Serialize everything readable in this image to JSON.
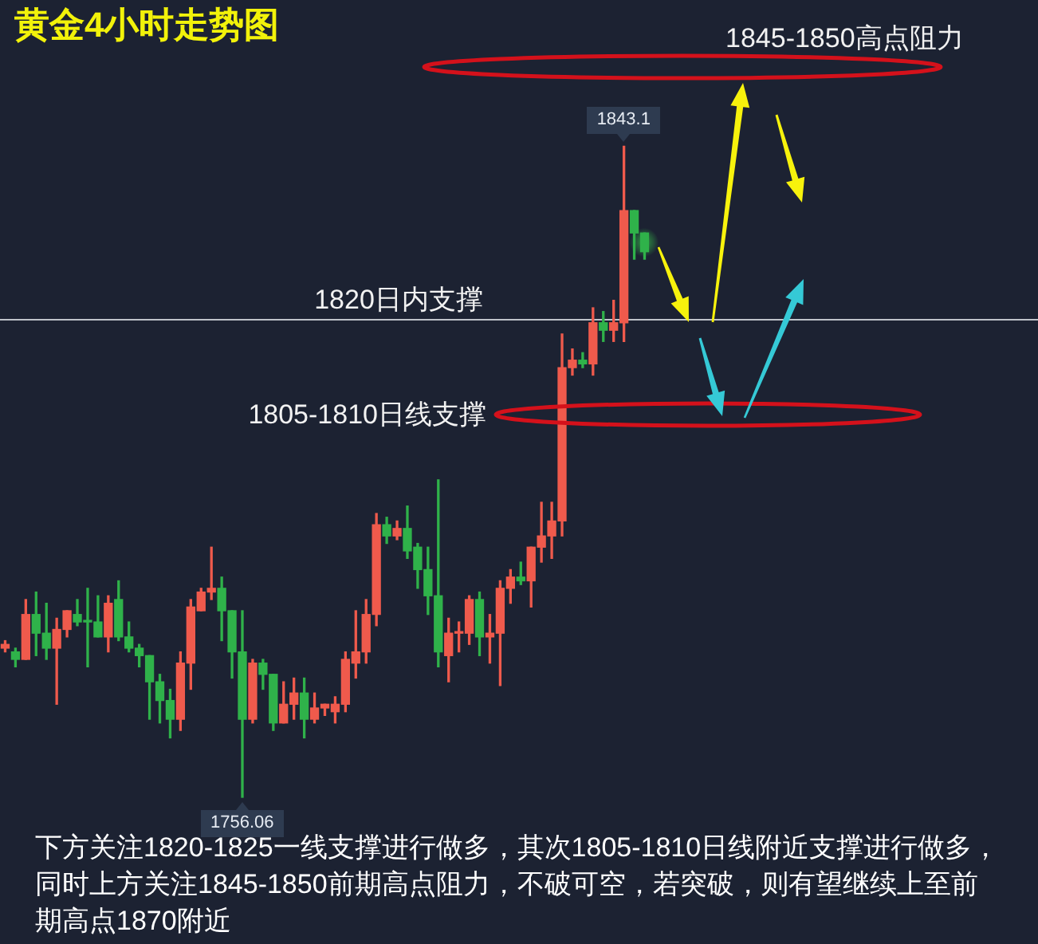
{
  "chart_data": {
    "type": "candlestick",
    "title": "黄金4小时走势图",
    "categories": [
      null,
      null,
      null,
      null,
      null,
      null,
      null,
      null,
      null,
      null,
      null,
      null,
      null,
      null,
      null,
      null,
      null,
      null,
      null,
      null,
      null,
      null,
      null,
      null,
      null,
      null,
      null,
      null,
      null,
      null,
      null,
      null,
      null,
      null,
      null,
      null,
      null,
      null,
      null,
      null,
      null,
      null,
      null,
      null,
      null,
      null,
      null,
      null,
      null,
      null,
      null,
      null,
      null,
      null,
      null,
      null,
      null,
      null,
      null,
      null,
      null,
      null,
      null
    ],
    "ohlc": [
      [
        1776,
        1777,
        1775.5,
        1776.5
      ],
      [
        1775.5,
        1776,
        1773.5,
        1774.5
      ],
      [
        1774.5,
        1782.5,
        1774.5,
        1780.5
      ],
      [
        1780.5,
        1783.5,
        1775,
        1778
      ],
      [
        1778,
        1782,
        1774.5,
        1776
      ],
      [
        1776,
        1780,
        1768.5,
        1778.5
      ],
      [
        1778.5,
        1781,
        1777.5,
        1781
      ],
      [
        1780.5,
        1782.5,
        1779,
        1779.5
      ],
      [
        1779.5,
        1784,
        1773.5,
        1779.5
      ],
      [
        1779.5,
        1783,
        1777.5,
        1777.5
      ],
      [
        1777.5,
        1783,
        1775.5,
        1782
      ],
      [
        1782.5,
        1785,
        1777,
        1777.5
      ],
      [
        1777.5,
        1779.5,
        1775.5,
        1776
      ],
      [
        1776,
        1776.5,
        1773.5,
        1775
      ],
      [
        1775,
        1775,
        1766.5,
        1771.5
      ],
      [
        1771.5,
        1772.5,
        1766,
        1769
      ],
      [
        1769,
        1770.5,
        1764,
        1766.5
      ],
      [
        1766.5,
        1775.5,
        1765,
        1774
      ],
      [
        1774,
        1782.5,
        1770.5,
        1781.5
      ],
      [
        1781,
        1784,
        1781,
        1783.5
      ],
      [
        1783.5,
        1789.5,
        1782.5,
        1784
      ],
      [
        1784,
        1785.5,
        1777,
        1781
      ],
      [
        1781,
        1781,
        1772,
        1775.5
      ],
      [
        1775.5,
        1781,
        1756.06,
        1766.5
      ],
      [
        1766.5,
        1774.5,
        1766,
        1774
      ],
      [
        1774,
        1774.5,
        1770.5,
        1772.5
      ],
      [
        1772.5,
        1772.5,
        1765,
        1766
      ],
      [
        1766,
        1771.5,
        1766,
        1768.5
      ],
      [
        1768.5,
        1772,
        1766.5,
        1770
      ],
      [
        1770,
        1772,
        1764,
        1766.5
      ],
      [
        1766.5,
        1770,
        1766,
        1768
      ],
      [
        1768,
        1768.5,
        1767,
        1768.5
      ],
      [
        1767.5,
        1769.5,
        1766,
        1768.5
      ],
      [
        1768.5,
        1775.5,
        1767.5,
        1774.5
      ],
      [
        1774,
        1781,
        1772,
        1775.5
      ],
      [
        1775.5,
        1782.5,
        1774,
        1780.5
      ],
      [
        1780.5,
        1794,
        1779,
        1792.5
      ],
      [
        1792.5,
        1793.5,
        1790,
        1791
      ],
      [
        1791,
        1793,
        1790.5,
        1792
      ],
      [
        1792,
        1795,
        1788,
        1789
      ],
      [
        1789.5,
        1790,
        1784,
        1786.5
      ],
      [
        1786.5,
        1789.5,
        1780.5,
        1783
      ],
      [
        1783,
        1798.5,
        1773.5,
        1775.5
      ],
      [
        1775,
        1780,
        1771.5,
        1778
      ],
      [
        1778,
        1779.5,
        1775.5,
        1778
      ],
      [
        1778,
        1783,
        1776.5,
        1782.5
      ],
      [
        1782.5,
        1783.5,
        1775,
        1777.5
      ],
      [
        1777.5,
        1780.5,
        1774,
        1778
      ],
      [
        1778,
        1785,
        1771,
        1784
      ],
      [
        1784,
        1786.5,
        1782,
        1785.5
      ],
      [
        1785.5,
        1787.5,
        1784.5,
        1785
      ],
      [
        1785,
        1789.5,
        1781.5,
        1789.5
      ],
      [
        1789.5,
        1795.5,
        1787.5,
        1791
      ],
      [
        1791,
        1795.5,
        1788,
        1793
      ],
      [
        1793,
        1818,
        1791,
        1813.5
      ],
      [
        1813.5,
        1816,
        1812.5,
        1814.5
      ],
      [
        1814.5,
        1815.5,
        1813.5,
        1814
      ],
      [
        1814,
        1821.5,
        1812.5,
        1819.5
      ],
      [
        1819.5,
        1821,
        1817,
        1818.5
      ],
      [
        1818.5,
        1822.5,
        1817,
        1819.5
      ],
      [
        1819.5,
        1843.1,
        1817,
        1834.5
      ],
      [
        1834.5,
        1834.5,
        1828,
        1831.5
      ],
      [
        1831.5,
        1831.5,
        1828,
        1829
      ]
    ],
    "colors": [
      "#ef5a4c",
      "#2fb24a",
      "#ef5a4c",
      "#2fb24a",
      "#2fb24a",
      "#ef5a4c",
      "#ef5a4c",
      "#2fb24a",
      "#2fb24a",
      "#2fb24a",
      "#ef5a4c",
      "#2fb24a",
      "#2fb24a",
      "#2fb24a",
      "#2fb24a",
      "#2fb24a",
      "#2fb24a",
      "#ef5a4c",
      "#ef5a4c",
      "#ef5a4c",
      "#ef5a4c",
      "#2fb24a",
      "#2fb24a",
      "#2fb24a",
      "#ef5a4c",
      "#2fb24a",
      "#2fb24a",
      "#ef5a4c",
      "#ef5a4c",
      "#2fb24a",
      "#ef5a4c",
      "#ef5a4c",
      "#ef5a4c",
      "#ef5a4c",
      "#ef5a4c",
      "#ef5a4c",
      "#ef5a4c",
      "#2fb24a",
      "#ef5a4c",
      "#2fb24a",
      "#2fb24a",
      "#2fb24a",
      "#2fb24a",
      "#ef5a4c",
      "#ef5a4c",
      "#ef5a4c",
      "#2fb24a",
      "#ef5a4c",
      "#ef5a4c",
      "#ef5a4c",
      "#2fb24a",
      "#ef5a4c",
      "#ef5a4c",
      "#ef5a4c",
      "#ef5a4c",
      "#ef5a4c",
      "#2fb24a",
      "#ef5a4c",
      "#2fb24a",
      "#ef5a4c",
      "#ef5a4c",
      "#2fb24a",
      "#2fb24a"
    ],
    "tick_labels": false,
    "ref_lines": [
      {
        "axis": "y",
        "value": 1820,
        "label": "1820日内支撑",
        "color": "#bfc3c9"
      }
    ],
    "annotations": [
      "1845-1850高点阻力",
      "1805-1810日线支撑",
      "1843.1",
      "1756.06",
      "下方关注1820-1825一线支撑进行做多，其次1805-1810日线附近支撑进行做多，同时上方关注1845-1850前期高点阻力，不破可空，若突破，则有望继续上至前期高点1870附近"
    ]
  }
}
